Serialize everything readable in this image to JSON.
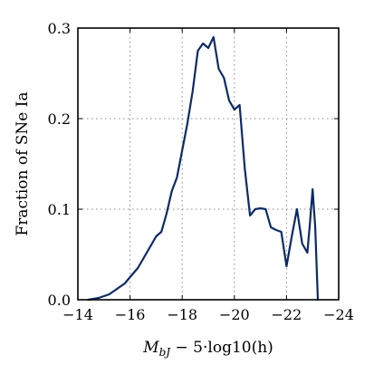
{
  "chart_data": {
    "type": "line",
    "title": "",
    "xlabel": "M_bJ − 5·log10(h)",
    "xlabel_parts": {
      "main": "M",
      "sub": "bJ",
      "rest": " − 5·log10(h)"
    },
    "ylabel": "Fraction of SNe Ia",
    "xlim": [
      -14,
      -24
    ],
    "ylim": [
      0,
      0.3
    ],
    "x_axis_reversed": true,
    "grid": true,
    "xticks": [
      -14,
      -16,
      -18,
      -20,
      -22,
      -24
    ],
    "xtick_labels": [
      "−14",
      "−16",
      "−18",
      "−20",
      "−22",
      "−24"
    ],
    "yticks": [
      0.0,
      0.1,
      0.2,
      0.3
    ],
    "ytick_labels": [
      "0.0",
      "0.1",
      "0.2",
      "0.3"
    ],
    "line_color": "#0d2a66",
    "series": [
      {
        "x": [
          -14.4,
          -14.8,
          -15.2,
          -15.5,
          -15.8,
          -16.0,
          -16.3,
          -16.5,
          -16.7,
          -17.0,
          -17.2,
          -17.4,
          -17.6,
          -17.8,
          -18.0,
          -18.2,
          -18.4,
          -18.6,
          -18.8,
          -19.0,
          -19.2,
          -19.4,
          -19.6,
          -19.8,
          -20.0,
          -20.2,
          -20.4,
          -20.6,
          -20.8,
          -21.0,
          -21.2,
          -21.4,
          -21.6,
          -21.8,
          -22.0,
          -22.2,
          -22.4,
          -22.6,
          -22.8,
          -22.9,
          -23.0,
          -23.1,
          -23.2
        ],
        "y": [
          0.0,
          0.002,
          0.006,
          0.012,
          0.018,
          0.025,
          0.035,
          0.045,
          0.055,
          0.07,
          0.075,
          0.095,
          0.12,
          0.135,
          0.165,
          0.195,
          0.23,
          0.275,
          0.283,
          0.278,
          0.29,
          0.255,
          0.245,
          0.22,
          0.21,
          0.215,
          0.145,
          0.093,
          0.1,
          0.101,
          0.1,
          0.08,
          0.077,
          0.075,
          0.037,
          0.07,
          0.1,
          0.062,
          0.052,
          0.085,
          0.122,
          0.08,
          0.0
        ]
      }
    ]
  }
}
